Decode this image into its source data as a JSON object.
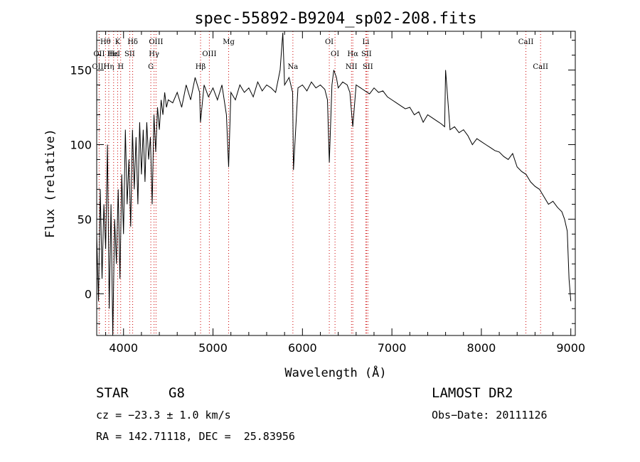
{
  "chart_data": {
    "type": "line",
    "title": "spec-55892-B9204_sp02-208.fits",
    "xlabel": "Wavelength (Å)",
    "ylabel": "Flux (relative)",
    "xlim": [
      3700,
      9050
    ],
    "ylim": [
      -28,
      176
    ],
    "xticks": [
      4000,
      5000,
      6000,
      7000,
      8000,
      9000
    ],
    "yticks": [
      0,
      50,
      100,
      150
    ],
    "grid": false,
    "line_color": "#000000",
    "marker_line_color": "#cc0000",
    "series": [
      {
        "x": [
          3700,
          3720,
          3740,
          3760,
          3780,
          3800,
          3820,
          3840,
          3860,
          3880,
          3900,
          3920,
          3940,
          3960,
          3980,
          4000,
          4020,
          4040,
          4060,
          4080,
          4100,
          4120,
          4140,
          4160,
          4180,
          4200,
          4220,
          4240,
          4260,
          4280,
          4300,
          4320,
          4340,
          4360,
          4380,
          4400,
          4420,
          4440,
          4460,
          4480,
          4500,
          4550,
          4600,
          4650,
          4700,
          4750,
          4800,
          4850,
          4860,
          4900,
          4950,
          5000,
          5050,
          5100,
          5150,
          5175,
          5200,
          5250,
          5300,
          5350,
          5400,
          5450,
          5500,
          5550,
          5600,
          5650,
          5700,
          5750,
          5780,
          5800,
          5850,
          5890,
          5900,
          5950,
          6000,
          6050,
          6100,
          6150,
          6200,
          6250,
          6280,
          6300,
          6330,
          6350,
          6380,
          6400,
          6450,
          6500,
          6530,
          6563,
          6600,
          6650,
          6700,
          6750,
          6800,
          6850,
          6900,
          6950,
          7000,
          7050,
          7100,
          7150,
          7200,
          7250,
          7300,
          7350,
          7400,
          7450,
          7500,
          7550,
          7590,
          7600,
          7650,
          7700,
          7750,
          7800,
          7850,
          7900,
          7950,
          8000,
          8050,
          8100,
          8150,
          8200,
          8250,
          8300,
          8350,
          8400,
          8450,
          8500,
          8550,
          8600,
          8650,
          8700,
          8750,
          8800,
          8850,
          8900,
          8930,
          8960,
          8980,
          9000
        ],
        "y": [
          40,
          -5,
          70,
          10,
          60,
          30,
          100,
          -10,
          60,
          -28,
          50,
          20,
          70,
          10,
          80,
          40,
          110,
          60,
          90,
          45,
          110,
          70,
          105,
          60,
          115,
          80,
          110,
          75,
          115,
          90,
          105,
          60,
          120,
          95,
          125,
          110,
          130,
          120,
          135,
          125,
          130,
          128,
          135,
          125,
          140,
          130,
          145,
          135,
          115,
          140,
          132,
          138,
          130,
          140,
          120,
          85,
          135,
          130,
          140,
          135,
          138,
          132,
          142,
          136,
          140,
          138,
          135,
          150,
          175,
          140,
          145,
          135,
          83,
          138,
          140,
          136,
          142,
          138,
          140,
          137,
          130,
          88,
          140,
          150,
          145,
          138,
          142,
          140,
          135,
          112,
          140,
          138,
          136,
          134,
          138,
          135,
          136,
          132,
          130,
          128,
          126,
          124,
          125,
          120,
          122,
          115,
          120,
          118,
          116,
          114,
          112,
          150,
          110,
          112,
          108,
          110,
          106,
          100,
          104,
          102,
          100,
          98,
          96,
          95,
          92,
          90,
          94,
          85,
          82,
          80,
          75,
          72,
          70,
          65,
          60,
          62,
          58,
          55,
          50,
          42,
          10,
          -5
        ]
      }
    ],
    "line_markers": [
      {
        "label": "Hθ",
        "x": 3798,
        "row": 1
      },
      {
        "label": "OII",
        "x": 3727,
        "row": 2
      },
      {
        "label": "OIII",
        "x": 3727,
        "row": 3
      },
      {
        "label": "K",
        "x": 3934,
        "row": 1
      },
      {
        "label": "Hε",
        "x": 3889,
        "row": 2
      },
      {
        "label": "HeI",
        "x": 3889,
        "row": 2
      },
      {
        "label": "Hη",
        "x": 3835,
        "row": 3
      },
      {
        "label": "SII",
        "x": 4069,
        "row": 2
      },
      {
        "label": "H",
        "x": 3968,
        "row": 3
      },
      {
        "label": "Hδ",
        "x": 4102,
        "row": 1
      },
      {
        "label": "OIII",
        "x": 4363,
        "row": 1
      },
      {
        "label": "Hγ",
        "x": 4341,
        "row": 2
      },
      {
        "label": "G",
        "x": 4305,
        "row": 3
      },
      {
        "label": "Mg",
        "x": 5175,
        "row": 1
      },
      {
        "label": "OIII",
        "x": 4959,
        "row": 2
      },
      {
        "label": "Hβ",
        "x": 4861,
        "row": 3
      },
      {
        "label": "Na",
        "x": 5893,
        "row": 3
      },
      {
        "label": "OI",
        "x": 6300,
        "row": 1
      },
      {
        "label": "OI",
        "x": 6364,
        "row": 2
      },
      {
        "label": "Li",
        "x": 6708,
        "row": 1
      },
      {
        "label": "Hα",
        "x": 6563,
        "row": 2
      },
      {
        "label": "SII",
        "x": 6716,
        "row": 2
      },
      {
        "label": "NII",
        "x": 6548,
        "row": 3
      },
      {
        "label": "SII",
        "x": 6731,
        "row": 3
      },
      {
        "label": "CaII",
        "x": 8498,
        "row": 1
      },
      {
        "label": "CaII",
        "x": 8662,
        "row": 3
      }
    ]
  },
  "info": {
    "object_type": "STAR",
    "subclass": "G8",
    "survey": "LAMOST DR2",
    "cz": "cz = −23.3 ± 1.0 km/s",
    "obs_date": "Obs−Date: 20111126",
    "coords": "RA = 142.71118, DEC =  25.83956"
  }
}
